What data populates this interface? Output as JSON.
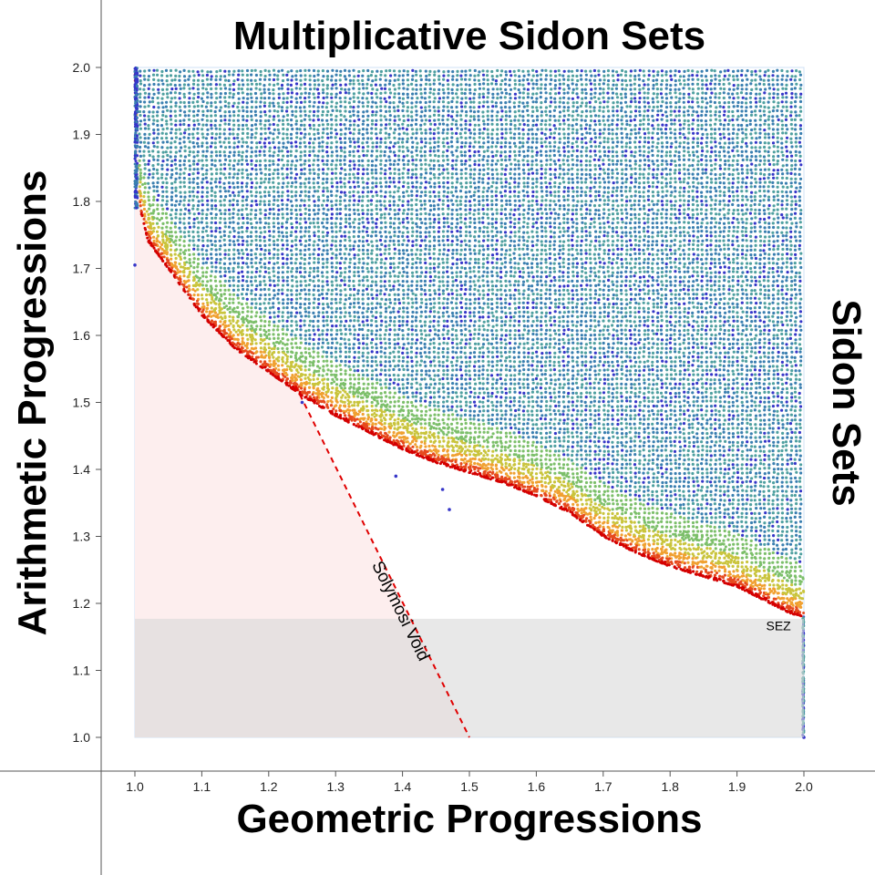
{
  "chart_data": {
    "type": "scatter",
    "title": "Multiplicative Sidon Sets",
    "xlabel": "Geometric Progressions",
    "ylabel": "Arithmetic Progressions",
    "right_label": "Sidon Sets",
    "xlim": [
      1.0,
      2.0
    ],
    "ylim": [
      1.0,
      2.0
    ],
    "xticks": [
      "1.0",
      "1.1",
      "1.2",
      "1.3",
      "1.4",
      "1.5",
      "1.6",
      "1.7",
      "1.8",
      "1.9",
      "2.0"
    ],
    "yticks": [
      "1.0",
      "1.1",
      "1.2",
      "1.3",
      "1.4",
      "1.5",
      "1.6",
      "1.7",
      "1.8",
      "1.9",
      "2.0"
    ],
    "colors": {
      "void_region": "#fdeeee",
      "sez_band": "#d9d9d9",
      "dashed_line": "#e00000",
      "palette": [
        "#3636c8",
        "#3a7fb0",
        "#4fa0a0",
        "#7cbf6a",
        "#c9c43c",
        "#f0a030",
        "#e64a1e",
        "#d40000"
      ]
    },
    "regions": [
      {
        "name": "Solymosi Void",
        "label": "Solymosi Void",
        "line_from": [
          1.24,
          1.525
        ],
        "line_to": [
          1.5,
          1.0
        ]
      },
      {
        "name": "SEZ",
        "label": "SEZ",
        "y_range": [
          1.0,
          1.177
        ],
        "x_range": [
          1.0,
          2.0
        ]
      }
    ],
    "boundary": [
      [
        1.0,
        2.0
      ],
      [
        1.005,
        1.8
      ],
      [
        1.02,
        1.74
      ],
      [
        1.05,
        1.7
      ],
      [
        1.1,
        1.63
      ],
      [
        1.15,
        1.58
      ],
      [
        1.2,
        1.545
      ],
      [
        1.25,
        1.51
      ],
      [
        1.3,
        1.48
      ],
      [
        1.35,
        1.455
      ],
      [
        1.4,
        1.43
      ],
      [
        1.45,
        1.41
      ],
      [
        1.5,
        1.395
      ],
      [
        1.55,
        1.38
      ],
      [
        1.6,
        1.36
      ],
      [
        1.65,
        1.335
      ],
      [
        1.7,
        1.3
      ],
      [
        1.75,
        1.275
      ],
      [
        1.8,
        1.255
      ],
      [
        1.85,
        1.24
      ],
      [
        1.9,
        1.225
      ],
      [
        1.95,
        1.2
      ],
      [
        1.98,
        1.185
      ],
      [
        2.0,
        1.18
      ]
    ],
    "notable_points": [
      {
        "x": 1.0,
        "y": 1.705
      },
      {
        "x": 1.25,
        "y": 1.5
      },
      {
        "x": 1.39,
        "y": 1.39
      },
      {
        "x": 1.46,
        "y": 1.37
      },
      {
        "x": 1.47,
        "y": 1.34
      },
      {
        "x": 2.0,
        "y": 1.0
      }
    ]
  }
}
